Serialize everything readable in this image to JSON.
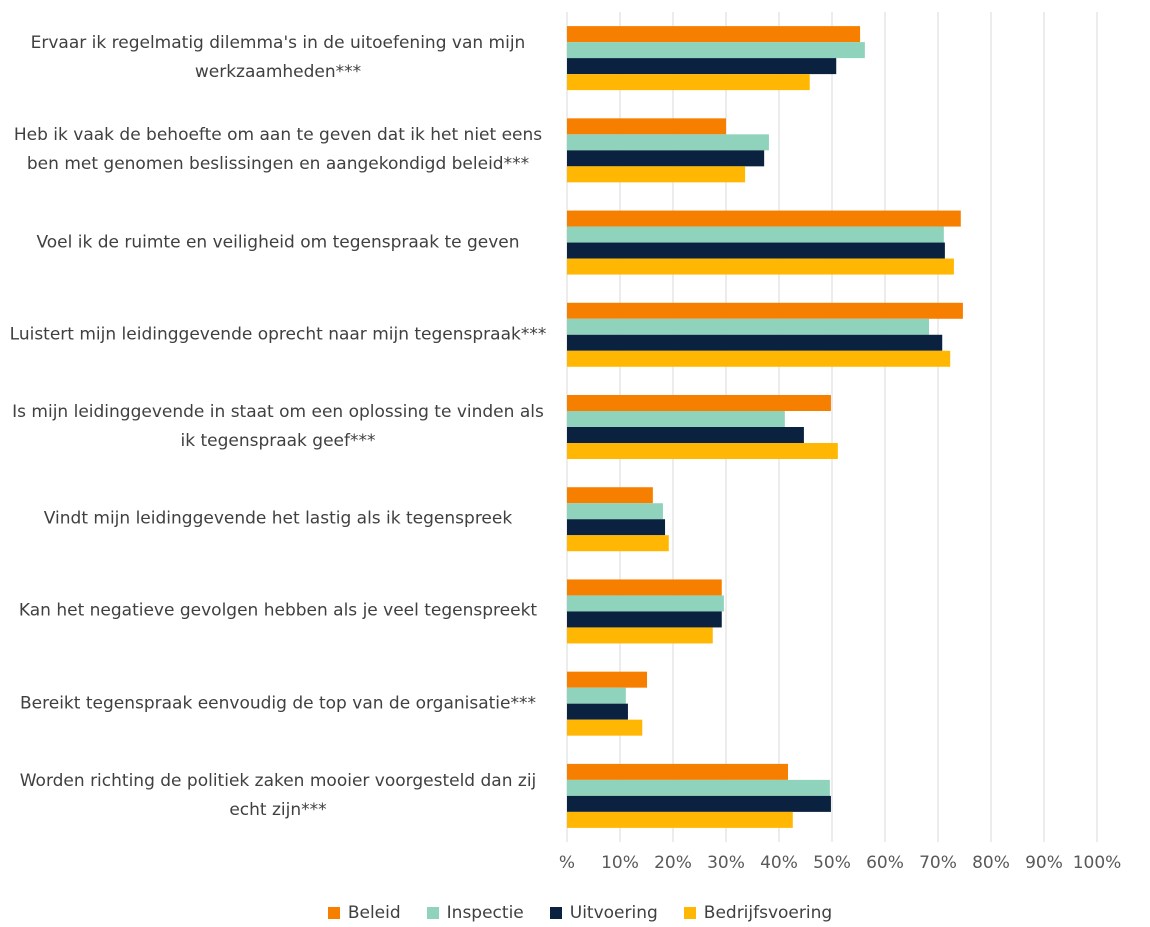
{
  "chart_data": {
    "type": "bar",
    "orientation": "horizontal",
    "categories": [
      "Ervaar ik regelmatig dilemma's in de uitoefening van mijn werkzaamheden***",
      "Heb ik vaak de behoefte om aan te geven dat ik het niet eens ben met genomen beslissingen en aangekondigd beleid***",
      "Voel ik de ruimte en veiligheid om tegenspraak te geven",
      "Luistert mijn leidinggevende oprecht naar mijn tegenspraak***",
      "Is mijn leidinggevende in staat om een oplossing te vinden als ik tegenspraak geef***",
      "Vindt mijn leidinggevende het lastig als ik tegenspreek",
      "Kan het negatieve gevolgen hebben als je veel tegenspreekt",
      "Bereikt tegenspraak eenvoudig de top van de organisatie***",
      "Worden richting de politiek zaken mooier voorgesteld dan zij echt zijn***"
    ],
    "series": [
      {
        "name": "Beleid",
        "color": "#f77f00",
        "values": [
          55.3,
          30,
          74.3,
          74.7,
          49.8,
          16.2,
          29.2,
          15.1,
          41.7
        ]
      },
      {
        "name": "Inspectie",
        "color": "#8fd3bc",
        "values": [
          56.2,
          38.1,
          71.1,
          68.3,
          41.1,
          18.1,
          29.6,
          11.1,
          49.6
        ]
      },
      {
        "name": "Uitvoering",
        "color": "#0a2240",
        "values": [
          50.8,
          37.2,
          71.3,
          70.8,
          44.7,
          18.5,
          29.2,
          11.5,
          49.8
        ]
      },
      {
        "name": "Bedrijfsvoering",
        "color": "#ffb703",
        "values": [
          45.8,
          33.6,
          73.0,
          72.3,
          51.1,
          19.2,
          27.5,
          14.2,
          42.6
        ]
      }
    ],
    "xlim": [
      0,
      100
    ],
    "xticks": [
      {
        "value": 0,
        "label": "%"
      },
      {
        "value": 10,
        "label": "10%"
      },
      {
        "value": 20,
        "label": "20%"
      },
      {
        "value": 30,
        "label": "30%"
      },
      {
        "value": 40,
        "label": "40%"
      },
      {
        "value": 50,
        "label": "50%"
      },
      {
        "value": 60,
        "label": "60%"
      },
      {
        "value": 70,
        "label": "70%"
      },
      {
        "value": 80,
        "label": "80%"
      },
      {
        "value": 90,
        "label": "90%"
      },
      {
        "value": 100,
        "label": "100%"
      }
    ],
    "grid": true,
    "legend": "bottom"
  }
}
